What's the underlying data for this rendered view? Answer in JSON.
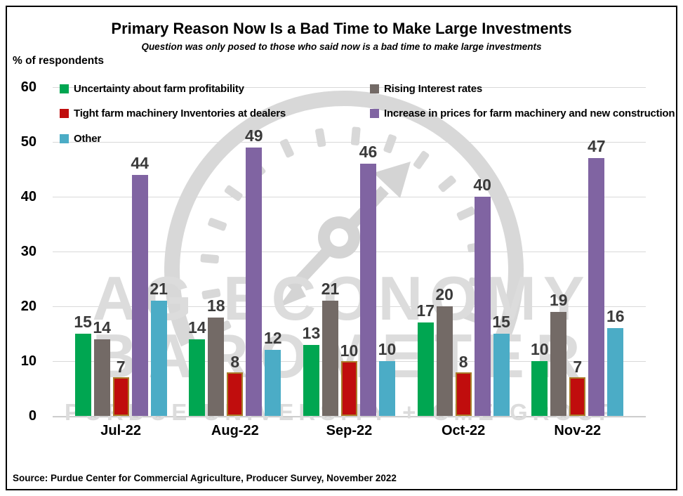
{
  "header": {
    "title": "Primary Reason Now Is a Bad Time to Make Large Investments",
    "subtitle": "Question was only posed to those who said now is a bad time to make large investments"
  },
  "axis": {
    "unit_label": "% of respondents"
  },
  "watermark": {
    "line1": "AG ECONOMY",
    "line2": "BAROMETER",
    "line3": "PURDUE UNIVERSITY + CME GROUP"
  },
  "footer": {
    "source": "Source: Purdue Center for Commercial Agriculture, Producer Survey, November 2022"
  },
  "colors": {
    "grid": "#D9D9D9",
    "axis_line": "#BFBFBF",
    "data_label": "#3a3a3a",
    "watermark_gray": "#D8D8D8"
  },
  "chart_data": {
    "type": "bar",
    "title": "Primary Reason Now Is a Bad Time to Make Large Investments",
    "ylabel": "% of respondents",
    "ylim": [
      0,
      60
    ],
    "yticks": [
      0,
      10,
      20,
      30,
      40,
      50,
      60
    ],
    "grid": true,
    "legend_position": "top-inside",
    "categories": [
      "Jul-22",
      "Aug-22",
      "Sep-22",
      "Oct-22",
      "Nov-22"
    ],
    "series": [
      {
        "name": "Uncertainty about farm profitability",
        "color": "#00A651",
        "values": [
          15,
          14,
          13,
          17,
          10
        ]
      },
      {
        "name": "Rising Interest rates",
        "color": "#736A66",
        "values": [
          14,
          18,
          21,
          20,
          19
        ]
      },
      {
        "name": "Tight farm machinery Inventories at dealers",
        "color": "#C00D0D",
        "border_color": "#A97B28",
        "values": [
          7,
          8,
          10,
          8,
          7
        ]
      },
      {
        "name": "Increase in prices for farm machinery and new construction",
        "color": "#8064A2",
        "values": [
          44,
          49,
          46,
          40,
          47
        ]
      },
      {
        "name": "Other",
        "color": "#4BACC6",
        "values": [
          21,
          12,
          10,
          15,
          16
        ]
      }
    ],
    "legend_layout": {
      "left_column_series": [
        0,
        2,
        4
      ],
      "right_column_series": [
        1,
        3
      ]
    }
  }
}
